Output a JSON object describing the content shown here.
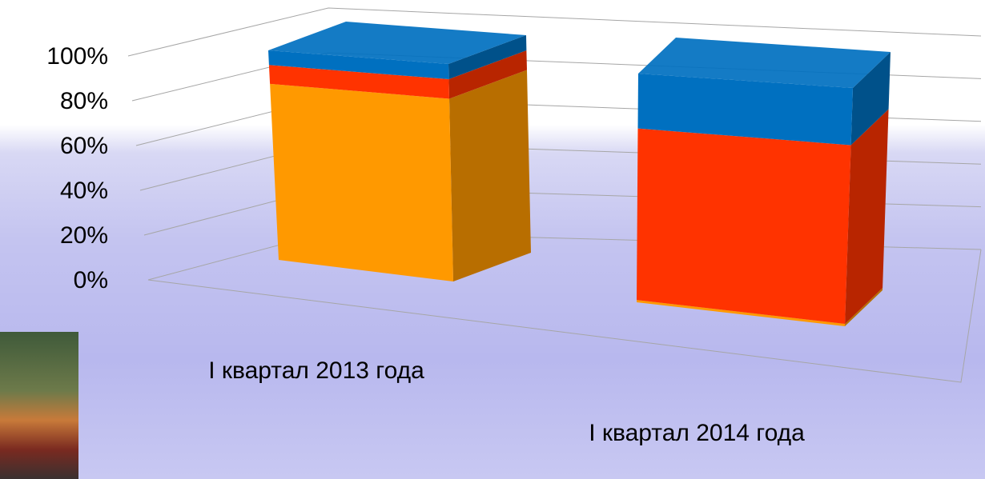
{
  "chart_data": {
    "type": "bar3d_stacked_percent",
    "categories": [
      "I квартал 2013 года",
      "I квартал 2014 года"
    ],
    "series": [
      {
        "color": "#ff9900",
        "values": [
          84,
          1
        ]
      },
      {
        "color": "#ff3300",
        "values": [
          9,
          75
        ]
      },
      {
        "color": "#0070c0",
        "values": [
          7,
          24
        ]
      }
    ],
    "ylim": [
      0,
      100
    ],
    "yticks": [
      {
        "value": 0,
        "label": "0%"
      },
      {
        "value": 20,
        "label": "20%"
      },
      {
        "value": 40,
        "label": "40%"
      },
      {
        "value": 60,
        "label": "60%"
      },
      {
        "value": 80,
        "label": "80%"
      },
      {
        "value": 100,
        "label": "100%"
      }
    ],
    "grid": true
  }
}
